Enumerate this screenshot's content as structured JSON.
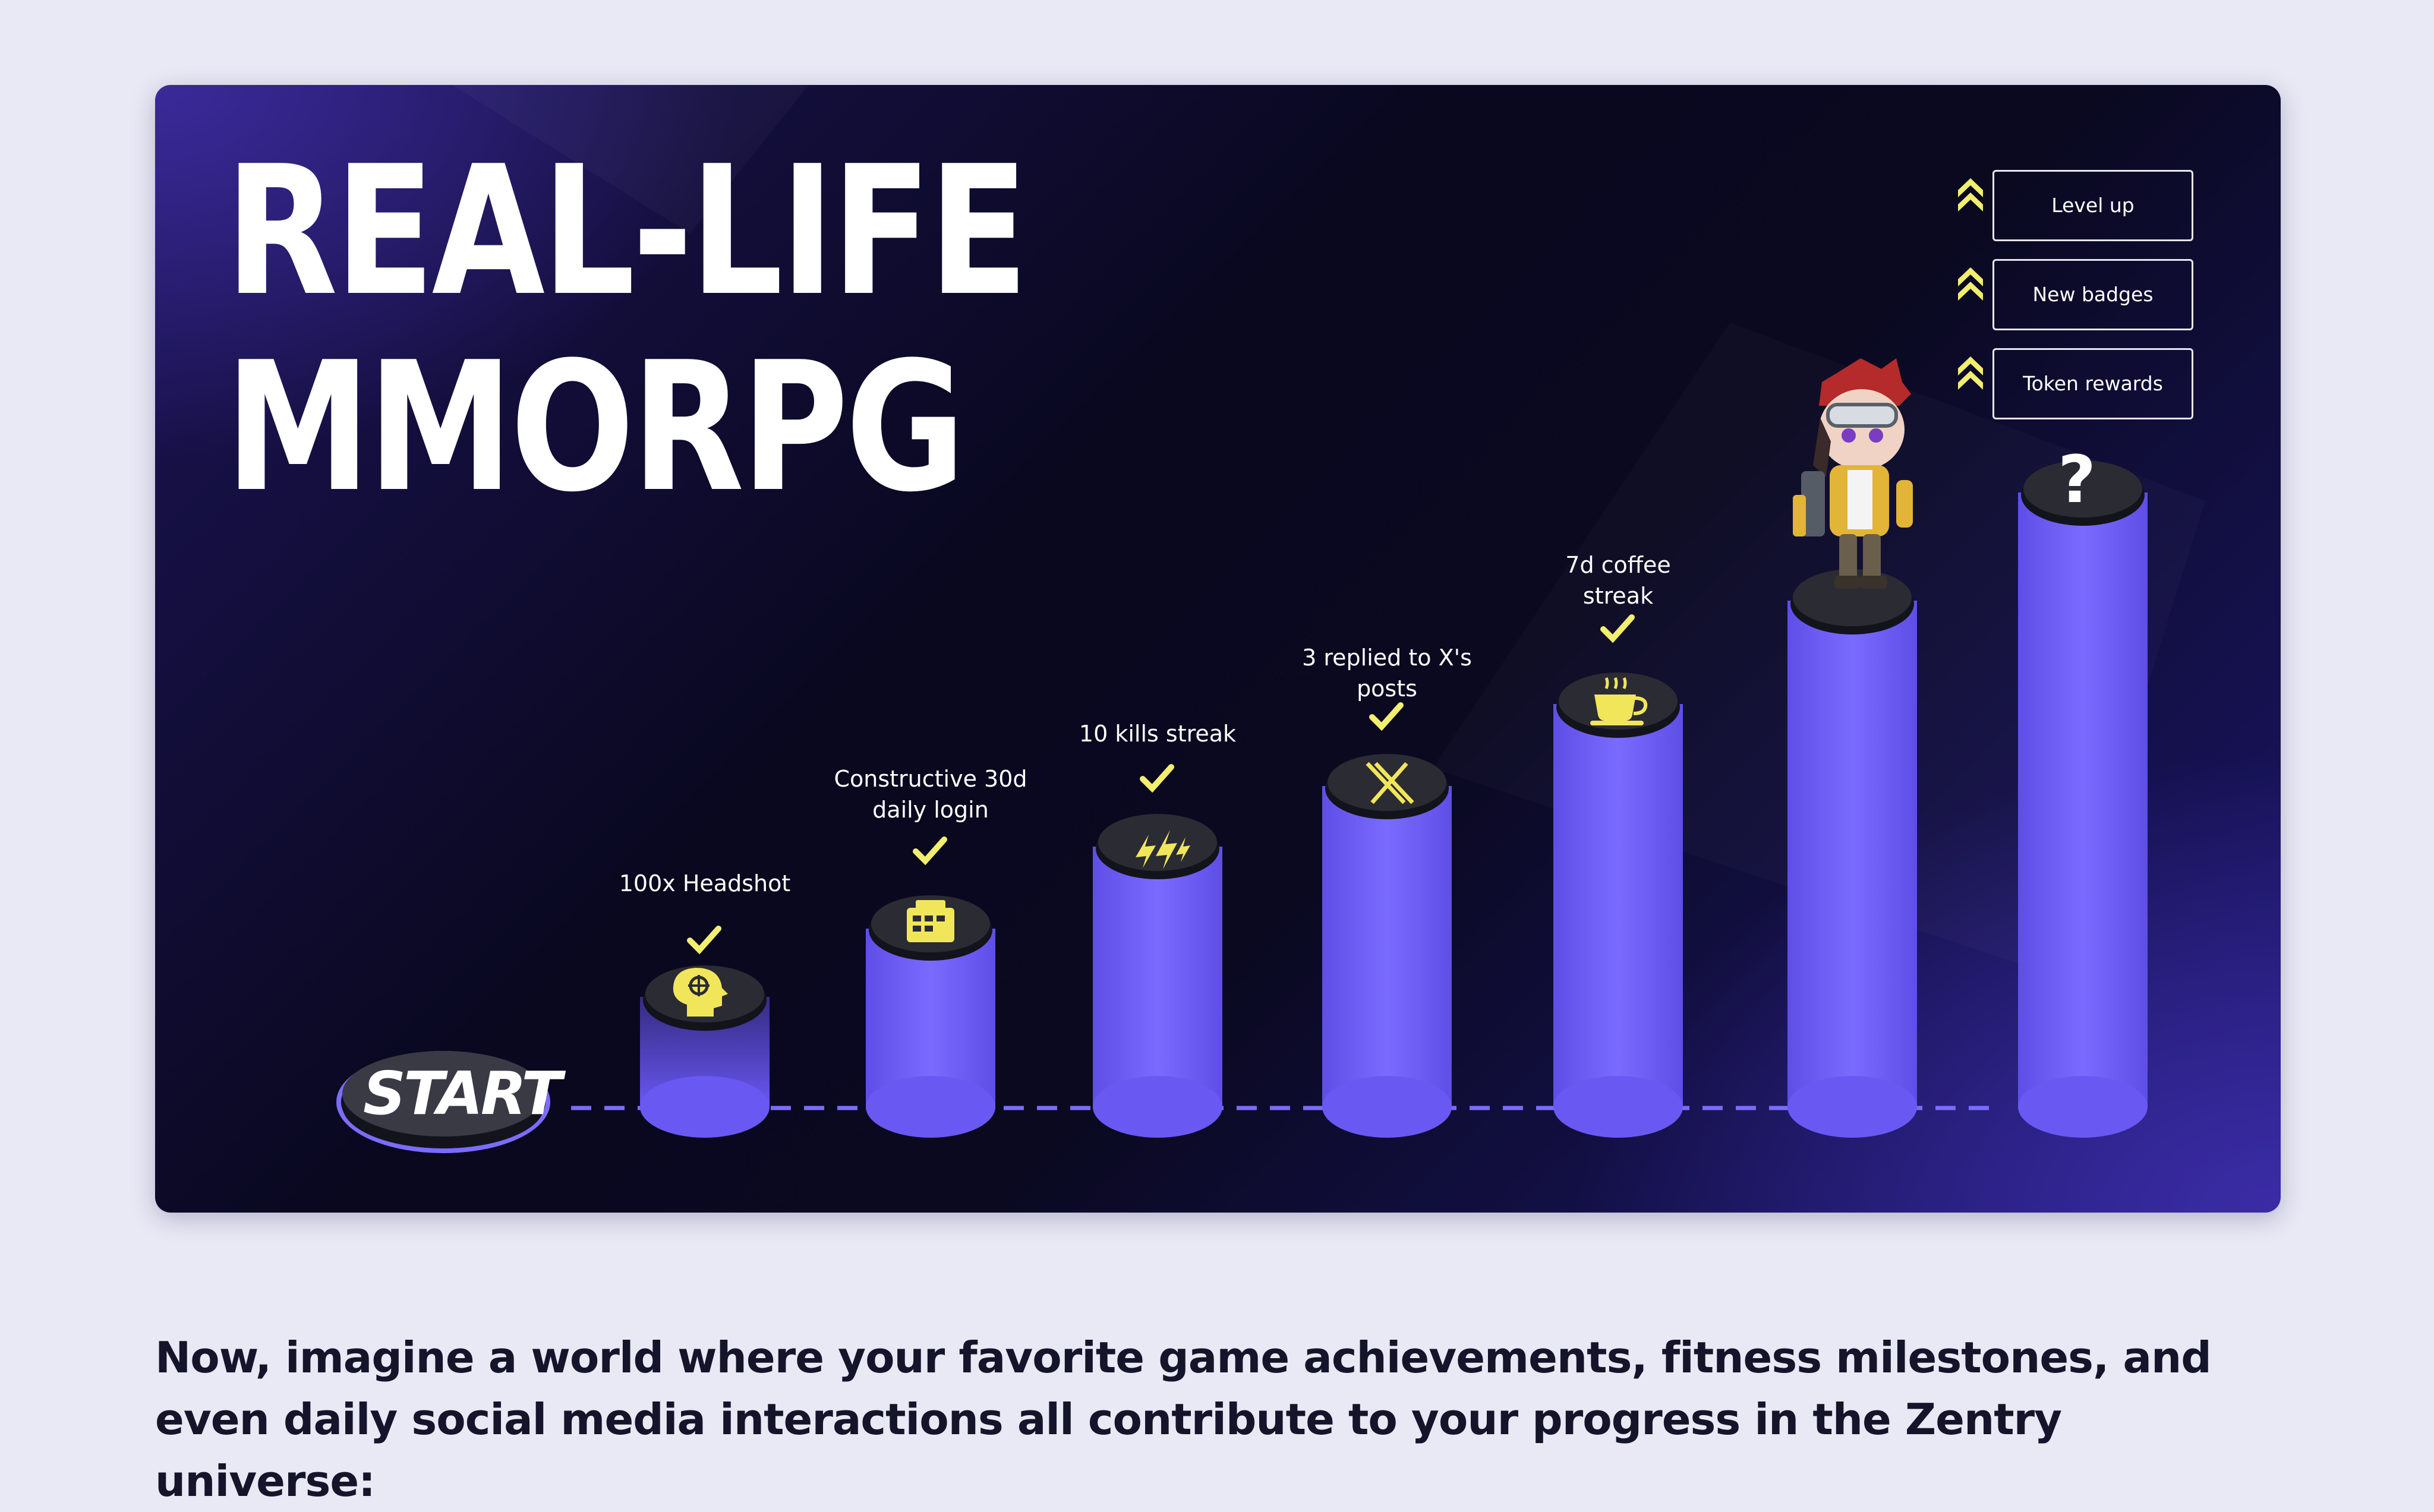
{
  "hero": {
    "title_line1": "REAL-LIFE",
    "title_line2": "MMORPG"
  },
  "legend": [
    {
      "label": "Level up",
      "icon": "double-chevron-up-icon"
    },
    {
      "label": "New badges",
      "icon": "double-chevron-up-icon"
    },
    {
      "label": "Token rewards",
      "icon": "double-chevron-up-icon"
    }
  ],
  "start": {
    "label": "START"
  },
  "steps": [
    {
      "label": "100x Headshot",
      "icon": "headshot-icon",
      "completed": true
    },
    {
      "label": "Constructive 30d daily login",
      "icon": "calendar-login-icon",
      "completed": true
    },
    {
      "label": "10 kills streak",
      "icon": "kill-streak-icon",
      "completed": true
    },
    {
      "label": "3 replied to X's posts",
      "icon": "x-logo-icon",
      "completed": true
    },
    {
      "label": "7d coffee streak",
      "icon": "coffee-icon",
      "completed": true
    },
    {
      "label": "",
      "icon": "avatar-character",
      "completed": false
    },
    {
      "label": "?",
      "icon": "question-icon",
      "completed": false
    }
  ],
  "colors": {
    "accent": "#7b6cff",
    "pillar": "#6f5df5",
    "check": "#f2ee6e",
    "icon_fill": "#f1e65a",
    "disk": "#1b1b25"
  },
  "body_text": "Now, imagine a world where your favorite game achievements, fitness milestones, and even daily social media interactions all contribute to your progress in the Zentry universe:"
}
